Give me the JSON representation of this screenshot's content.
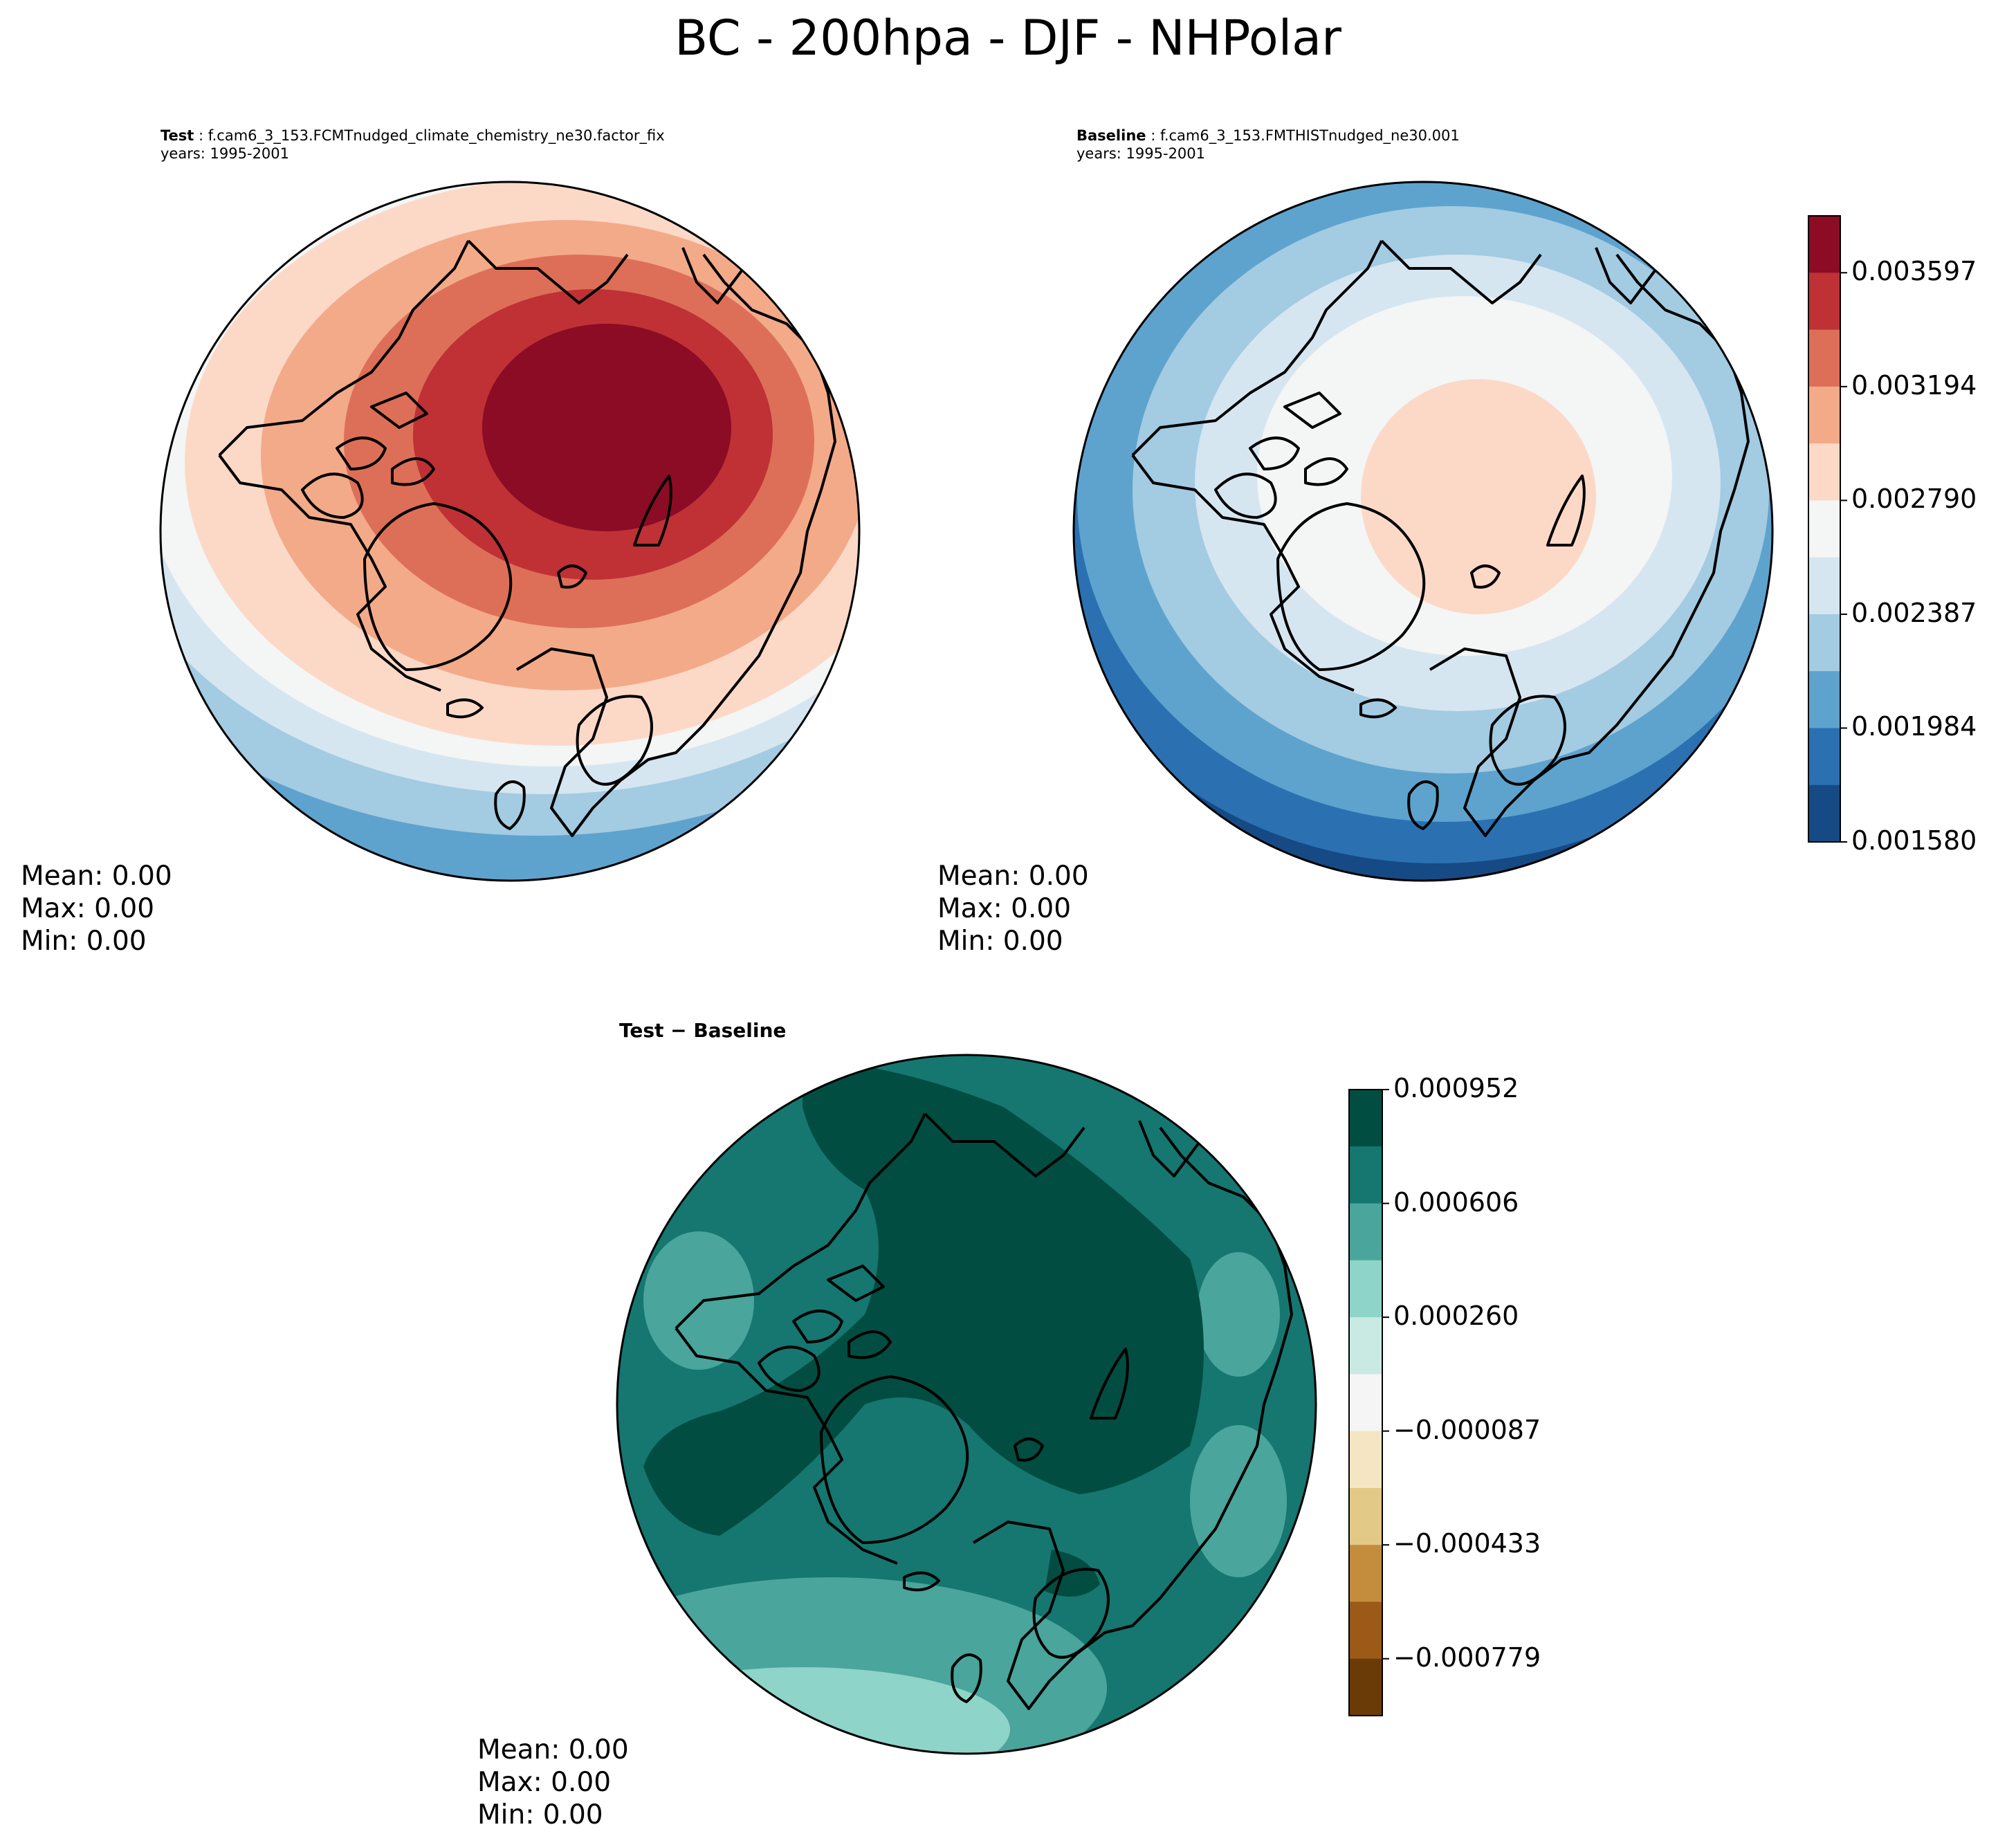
{
  "title": "BC - 200hpa - DJF - NHPolar",
  "test_panel": {
    "label": "Test",
    "case": "f.cam6_3_153.FCMTnudged_climate_chemistry_ne30.factor_fix",
    "years": "years: 1995-2001",
    "stats": {
      "mean": "Mean:  0.00",
      "max": "Max:  0.00",
      "min": "Min:  0.00"
    }
  },
  "baseline_panel": {
    "label": "Baseline",
    "case": "f.cam6_3_153.FMTHISTnudged_ne30.001",
    "years": "years: 1995-2001",
    "stats": {
      "mean": "Mean:  0.00",
      "max": "Max:  0.00",
      "min": "Min:  0.00"
    }
  },
  "diff_panel": {
    "label": "Test − Baseline",
    "stats": {
      "mean": "Mean:  0.00",
      "max": "Max:  0.00",
      "min": "Min:  0.00"
    }
  },
  "colorbar_top": {
    "ticks": [
      "0.003597",
      "0.003194",
      "0.002790",
      "0.002387",
      "0.001984",
      "0.001580"
    ],
    "colors_top_to_bottom": [
      "#8b0c24",
      "#bf3135",
      "#dd6f58",
      "#f3aa89",
      "#fcd9c7",
      "#f4f5f5",
      "#d5e6f1",
      "#a3cbe2",
      "#5ea3cd",
      "#2b71b2",
      "#164a84"
    ]
  },
  "colorbar_bottom": {
    "ticks": [
      "0.000952",
      "0.000606",
      "0.000260",
      "−0.000087",
      "−0.000433",
      "−0.000779"
    ],
    "colors_top_to_bottom": [
      "#024d41",
      "#157770",
      "#4aa59c",
      "#8fd4c8",
      "#c8eae3",
      "#f4f5f4",
      "#f5e6c3",
      "#e3c988",
      "#c48c3d",
      "#9b5a18",
      "#6a3a07"
    ]
  }
}
